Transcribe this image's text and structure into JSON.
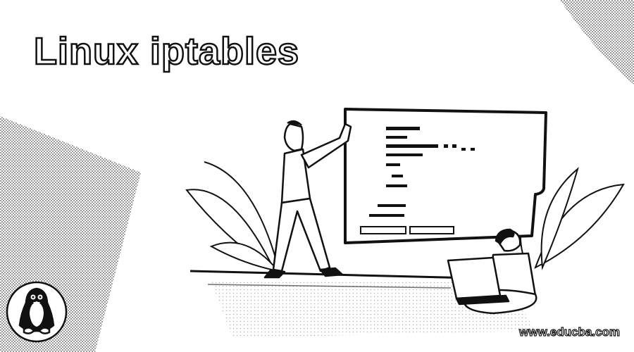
{
  "header": {
    "title": "Linux iptables"
  },
  "footer": {
    "site_url": "www.educba.com"
  },
  "illustration": {
    "logo_icon": "penguin-icon",
    "scene": "presenter-at-whiteboard-icon"
  },
  "colors": {
    "ink": "#111111",
    "background": "#ffffff",
    "dots": "#555555"
  }
}
